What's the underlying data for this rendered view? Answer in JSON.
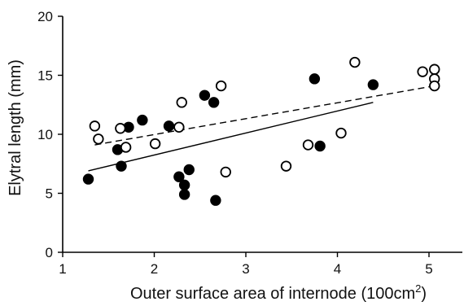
{
  "chart_data": {
    "type": "scatter",
    "xlabel": "Outer surface area of internode (100cm",
    "xlabel_sup": "2",
    "xlabel_close": ")",
    "ylabel": "Elytral length (mm)",
    "xlim": [
      1,
      5.4
    ],
    "ylim": [
      0,
      20
    ],
    "xticks": [
      "1",
      "2",
      "3",
      "4",
      "5"
    ],
    "yticks": [
      "0",
      "5",
      "10",
      "15",
      "20"
    ],
    "grid": false,
    "series": [
      {
        "marker": "filled-circle",
        "color": "#000000",
        "points": [
          {
            "x": 1.28,
            "y": 6.2
          },
          {
            "x": 1.6,
            "y": 8.7
          },
          {
            "x": 1.64,
            "y": 7.3
          },
          {
            "x": 1.72,
            "y": 10.6
          },
          {
            "x": 1.87,
            "y": 11.2
          },
          {
            "x": 2.16,
            "y": 10.7
          },
          {
            "x": 2.27,
            "y": 6.4
          },
          {
            "x": 2.33,
            "y": 5.7
          },
          {
            "x": 2.33,
            "y": 4.9
          },
          {
            "x": 2.38,
            "y": 7.0
          },
          {
            "x": 2.55,
            "y": 13.3
          },
          {
            "x": 2.65,
            "y": 12.7
          },
          {
            "x": 2.67,
            "y": 4.4
          },
          {
            "x": 3.75,
            "y": 14.7
          },
          {
            "x": 3.81,
            "y": 9.0
          },
          {
            "x": 4.39,
            "y": 14.2
          }
        ],
        "trend": {
          "style": "solid",
          "x": [
            1.28,
            4.39
          ],
          "y": [
            6.9,
            12.7
          ]
        }
      },
      {
        "marker": "open-circle",
        "color": "#000000",
        "points": [
          {
            "x": 1.35,
            "y": 10.7
          },
          {
            "x": 1.39,
            "y": 9.6
          },
          {
            "x": 1.63,
            "y": 10.5
          },
          {
            "x": 1.69,
            "y": 8.9
          },
          {
            "x": 2.01,
            "y": 9.2
          },
          {
            "x": 2.27,
            "y": 10.6
          },
          {
            "x": 2.3,
            "y": 12.7
          },
          {
            "x": 2.73,
            "y": 14.1
          },
          {
            "x": 2.78,
            "y": 6.8
          },
          {
            "x": 3.44,
            "y": 7.3
          },
          {
            "x": 3.68,
            "y": 9.1
          },
          {
            "x": 4.04,
            "y": 10.1
          },
          {
            "x": 4.19,
            "y": 16.1
          },
          {
            "x": 4.93,
            "y": 15.3
          },
          {
            "x": 5.06,
            "y": 15.5
          },
          {
            "x": 5.06,
            "y": 14.7
          },
          {
            "x": 5.06,
            "y": 14.1
          }
        ],
        "trend": {
          "style": "dashed",
          "x": [
            1.35,
            5.06
          ],
          "y": [
            9.1,
            14.1
          ]
        }
      }
    ]
  }
}
